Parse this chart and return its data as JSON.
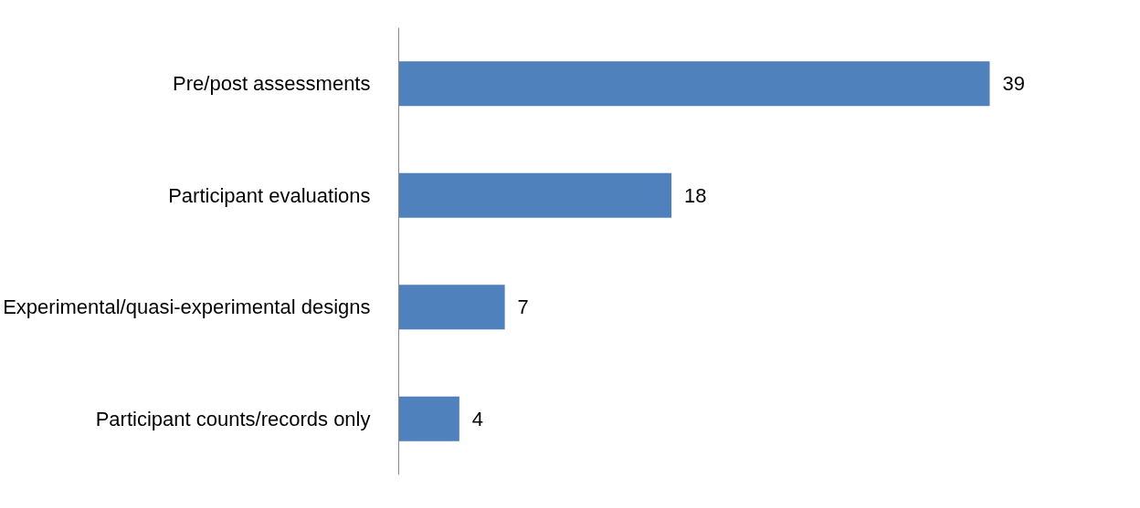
{
  "chart_data": {
    "type": "bar",
    "orientation": "horizontal",
    "categories": [
      "Pre/post assessments",
      "Participant evaluations",
      "Experimental/quasi-experimental designs",
      "Participant counts/records only"
    ],
    "values": [
      39,
      18,
      7,
      4
    ],
    "color": "#4f81bd",
    "data_labels": true,
    "grid": false,
    "tick_labels": "y"
  }
}
